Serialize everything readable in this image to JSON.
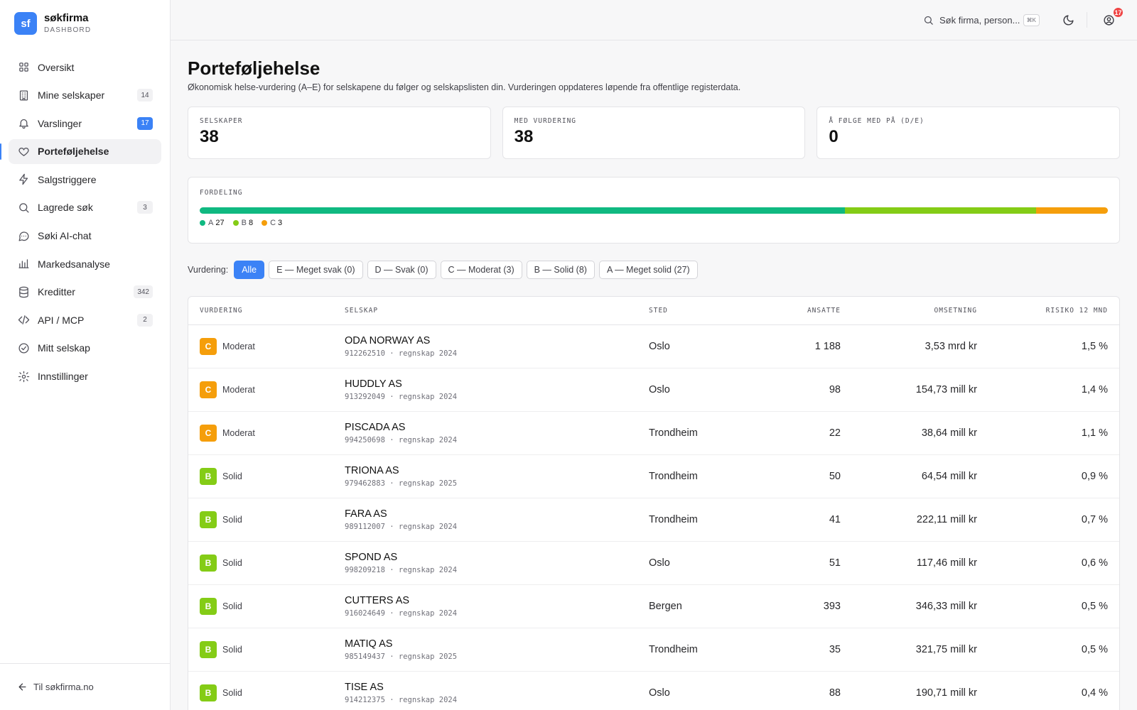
{
  "brand": {
    "logo": "sf",
    "name": "søkfirma",
    "sub": "DASHBORD"
  },
  "nav": [
    {
      "label": "Oversikt",
      "icon": "grid-icon",
      "badge": "",
      "badge_style": ""
    },
    {
      "label": "Mine selskaper",
      "icon": "building-icon",
      "badge": "14",
      "badge_style": ""
    },
    {
      "label": "Varslinger",
      "icon": "bell-icon",
      "badge": "17",
      "badge_style": "blue"
    },
    {
      "label": "Porteføljehelse",
      "icon": "heart-icon",
      "badge": "",
      "badge_style": "",
      "active": true
    },
    {
      "label": "Salgstriggere",
      "icon": "lightning-icon",
      "badge": "",
      "badge_style": ""
    },
    {
      "label": "Lagrede søk",
      "icon": "search-icon",
      "badge": "3",
      "badge_style": ""
    },
    {
      "label": "Søki AI-chat",
      "icon": "chat-icon",
      "badge": "",
      "badge_style": ""
    },
    {
      "label": "Markedsanalyse",
      "icon": "bar-chart-icon",
      "badge": "",
      "badge_style": ""
    },
    {
      "label": "Kreditter",
      "icon": "database-icon",
      "badge": "342",
      "badge_style": ""
    },
    {
      "label": "API / MCP",
      "icon": "code-icon",
      "badge": "2",
      "badge_style": ""
    },
    {
      "label": "Mitt selskap",
      "icon": "check-circle-icon",
      "badge": "",
      "badge_style": ""
    },
    {
      "label": "Innstillinger",
      "icon": "gear-icon",
      "badge": "",
      "badge_style": ""
    }
  ],
  "footer": {
    "label": "Til søkfirma.no"
  },
  "topbar": {
    "search_placeholder": "Søk firma, person...",
    "shortcut": "⌘K",
    "notifications": "17"
  },
  "page": {
    "title": "Porteføljehelse",
    "subtitle": "Økonomisk helse-vurdering (A–E) for selskapene du følger og selskapslisten din. Vurderingen oppdateres løpende fra offentlige registerdata."
  },
  "stats": [
    {
      "label": "SELSKAPER",
      "value": "38"
    },
    {
      "label": "MED VURDERING",
      "value": "38"
    },
    {
      "label": "Å FØLGE MED PÅ (D/E)",
      "value": "0"
    }
  ],
  "distribution": {
    "label": "FORDELING",
    "segments": [
      {
        "grade": "A",
        "count": 27,
        "color": "#10b981"
      },
      {
        "grade": "B",
        "count": 8,
        "color": "#84cc16"
      },
      {
        "grade": "C",
        "count": 3,
        "color": "#f59e0b"
      }
    ]
  },
  "filters": {
    "label": "Vurdering:",
    "options": [
      {
        "label": "Alle",
        "active": true
      },
      {
        "label": "E — Meget svak (0)",
        "active": false
      },
      {
        "label": "D — Svak (0)",
        "active": false
      },
      {
        "label": "C — Moderat (3)",
        "active": false
      },
      {
        "label": "B — Solid (8)",
        "active": false
      },
      {
        "label": "A — Meget solid (27)",
        "active": false
      }
    ]
  },
  "table": {
    "headers": [
      "VURDERING",
      "SELSKAP",
      "STED",
      "ANSATTE",
      "OMSETNING",
      "RISIKO 12 MND"
    ],
    "grade_colors": {
      "A": "#10b981",
      "B": "#84cc16",
      "C": "#f59e0b"
    },
    "rows": [
      {
        "grade": "C",
        "grade_label": "Moderat",
        "name": "ODA NORWAY AS",
        "meta": "912262510 · regnskap 2024",
        "place": "Oslo",
        "employees": "1 188",
        "revenue": "3,53 mrd kr",
        "risk": "1,5 %"
      },
      {
        "grade": "C",
        "grade_label": "Moderat",
        "name": "HUDDLY AS",
        "meta": "913292049 · regnskap 2024",
        "place": "Oslo",
        "employees": "98",
        "revenue": "154,73 mill kr",
        "risk": "1,4 %"
      },
      {
        "grade": "C",
        "grade_label": "Moderat",
        "name": "PISCADA AS",
        "meta": "994250698 · regnskap 2024",
        "place": "Trondheim",
        "employees": "22",
        "revenue": "38,64 mill kr",
        "risk": "1,1 %"
      },
      {
        "grade": "B",
        "grade_label": "Solid",
        "name": "TRIONA AS",
        "meta": "979462883 · regnskap 2025",
        "place": "Trondheim",
        "employees": "50",
        "revenue": "64,54 mill kr",
        "risk": "0,9 %"
      },
      {
        "grade": "B",
        "grade_label": "Solid",
        "name": "FARA AS",
        "meta": "989112007 · regnskap 2024",
        "place": "Trondheim",
        "employees": "41",
        "revenue": "222,11 mill kr",
        "risk": "0,7 %"
      },
      {
        "grade": "B",
        "grade_label": "Solid",
        "name": "SPOND AS",
        "meta": "998209218 · regnskap 2024",
        "place": "Oslo",
        "employees": "51",
        "revenue": "117,46 mill kr",
        "risk": "0,6 %"
      },
      {
        "grade": "B",
        "grade_label": "Solid",
        "name": "CUTTERS AS",
        "meta": "916024649 · regnskap 2024",
        "place": "Bergen",
        "employees": "393",
        "revenue": "346,33 mill kr",
        "risk": "0,5 %"
      },
      {
        "grade": "B",
        "grade_label": "Solid",
        "name": "MATIQ AS",
        "meta": "985149437 · regnskap 2025",
        "place": "Trondheim",
        "employees": "35",
        "revenue": "321,75 mill kr",
        "risk": "0,5 %"
      },
      {
        "grade": "B",
        "grade_label": "Solid",
        "name": "TISE AS",
        "meta": "914212375 · regnskap 2024",
        "place": "Oslo",
        "employees": "88",
        "revenue": "190,71 mill kr",
        "risk": "0,4 %"
      }
    ]
  }
}
